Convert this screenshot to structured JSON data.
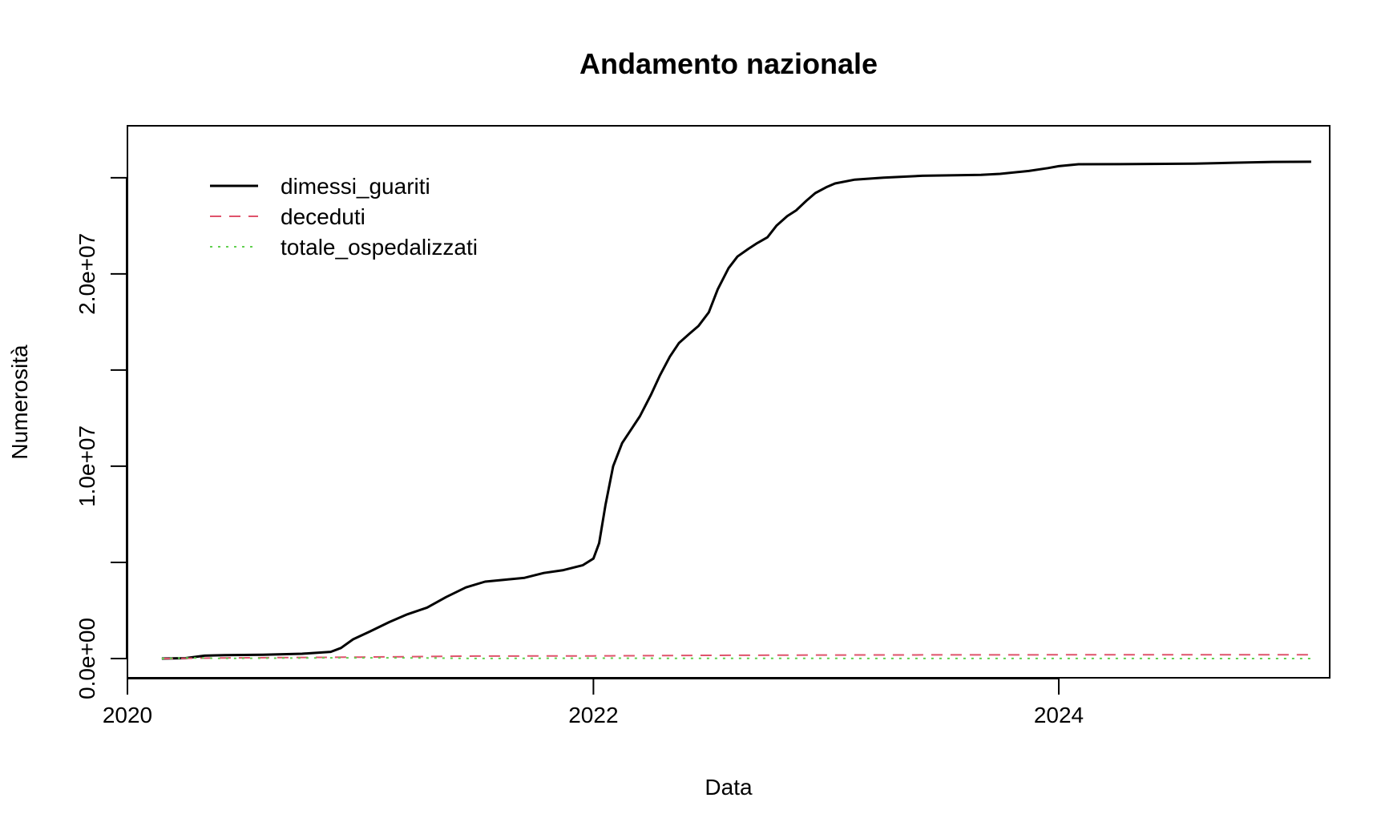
{
  "chart_data": {
    "type": "line",
    "title": "Andamento nazionale",
    "xlabel": "Data",
    "ylabel": "Numerosità",
    "xlim": [
      "2020-01-01",
      "2025-03-01"
    ],
    "ylim": [
      -1000000,
      27700000
    ],
    "x_ticks": [
      {
        "date": "2020-01-01",
        "label": "2020"
      },
      {
        "date": "2022-01-01",
        "label": "2022"
      },
      {
        "date": "2024-01-01",
        "label": "2024"
      }
    ],
    "y_ticks": [
      {
        "value": 0,
        "label": "0.0e+00"
      },
      {
        "value": 5000000,
        "label": ""
      },
      {
        "value": 10000000,
        "label": "1.0e+07"
      },
      {
        "value": 15000000,
        "label": ""
      },
      {
        "value": 20000000,
        "label": "2.0e+07"
      },
      {
        "value": 25000000,
        "label": ""
      }
    ],
    "grid": false,
    "legend_position": "top-left",
    "series": [
      {
        "name": "dimessi_guariti",
        "color": "#000000",
        "dash": "solid",
        "points": [
          [
            "2020-02-24",
            0
          ],
          [
            "2020-04-01",
            20000
          ],
          [
            "2020-05-01",
            150000
          ],
          [
            "2020-06-01",
            180000
          ],
          [
            "2020-08-01",
            200000
          ],
          [
            "2020-10-01",
            250000
          ],
          [
            "2020-11-15",
            350000
          ],
          [
            "2020-12-01",
            550000
          ],
          [
            "2020-12-20",
            1000000
          ],
          [
            "2021-01-15",
            1400000
          ],
          [
            "2021-02-15",
            1900000
          ],
          [
            "2021-03-15",
            2300000
          ],
          [
            "2021-04-15",
            2650000
          ],
          [
            "2021-05-15",
            3200000
          ],
          [
            "2021-06-15",
            3700000
          ],
          [
            "2021-07-15",
            4000000
          ],
          [
            "2021-08-15",
            4100000
          ],
          [
            "2021-09-15",
            4200000
          ],
          [
            "2021-10-15",
            4450000
          ],
          [
            "2021-11-15",
            4600000
          ],
          [
            "2021-12-15",
            4850000
          ],
          [
            "2022-01-01",
            5200000
          ],
          [
            "2022-01-10",
            6000000
          ],
          [
            "2022-01-20",
            8000000
          ],
          [
            "2022-02-01",
            10000000
          ],
          [
            "2022-02-15",
            11200000
          ],
          [
            "2022-03-01",
            11900000
          ],
          [
            "2022-03-15",
            12600000
          ],
          [
            "2022-04-01",
            13700000
          ],
          [
            "2022-04-15",
            14700000
          ],
          [
            "2022-05-01",
            15700000
          ],
          [
            "2022-05-15",
            16400000
          ],
          [
            "2022-06-01",
            16900000
          ],
          [
            "2022-06-15",
            17300000
          ],
          [
            "2022-07-01",
            18000000
          ],
          [
            "2022-07-15",
            19200000
          ],
          [
            "2022-08-01",
            20300000
          ],
          [
            "2022-08-15",
            20900000
          ],
          [
            "2022-09-01",
            21300000
          ],
          [
            "2022-09-15",
            21600000
          ],
          [
            "2022-10-01",
            21900000
          ],
          [
            "2022-10-15",
            22500000
          ],
          [
            "2022-11-01",
            23000000
          ],
          [
            "2022-11-15",
            23300000
          ],
          [
            "2022-12-01",
            23800000
          ],
          [
            "2022-12-15",
            24200000
          ],
          [
            "2023-01-01",
            24500000
          ],
          [
            "2023-01-15",
            24700000
          ],
          [
            "2023-02-15",
            24900000
          ],
          [
            "2023-04-01",
            25000000
          ],
          [
            "2023-06-01",
            25100000
          ],
          [
            "2023-09-01",
            25150000
          ],
          [
            "2023-10-01",
            25200000
          ],
          [
            "2023-11-15",
            25350000
          ],
          [
            "2023-12-15",
            25500000
          ],
          [
            "2024-01-01",
            25600000
          ],
          [
            "2024-02-01",
            25700000
          ],
          [
            "2024-05-01",
            25710000
          ],
          [
            "2024-08-01",
            25730000
          ],
          [
            "2024-10-01",
            25780000
          ],
          [
            "2024-12-01",
            25820000
          ],
          [
            "2025-01-31",
            25830000
          ]
        ]
      },
      {
        "name": "deceduti",
        "color": "#DF536B",
        "dash": "dashed",
        "points": [
          [
            "2020-02-24",
            0
          ],
          [
            "2020-06-01",
            33000
          ],
          [
            "2020-12-31",
            74000
          ],
          [
            "2021-06-30",
            127000
          ],
          [
            "2021-12-31",
            137000
          ],
          [
            "2022-06-30",
            168000
          ],
          [
            "2022-12-31",
            185000
          ],
          [
            "2023-06-30",
            190000
          ],
          [
            "2023-12-31",
            194000
          ],
          [
            "2024-06-30",
            196000
          ],
          [
            "2025-01-31",
            198000
          ]
        ]
      },
      {
        "name": "totale_ospedalizzati",
        "color": "#61D04F",
        "dash": "dotted",
        "points": [
          [
            "2020-02-24",
            0
          ],
          [
            "2020-04-05",
            33000
          ],
          [
            "2020-06-01",
            7000
          ],
          [
            "2020-11-20",
            38000
          ],
          [
            "2021-03-30",
            32000
          ],
          [
            "2021-07-01",
            3000
          ],
          [
            "2022-01-20",
            22000
          ],
          [
            "2022-06-01",
            6000
          ],
          [
            "2022-07-20",
            12000
          ],
          [
            "2023-01-01",
            8000
          ],
          [
            "2023-07-01",
            2000
          ],
          [
            "2024-01-01",
            3000
          ],
          [
            "2025-01-31",
            1500
          ]
        ]
      }
    ]
  }
}
